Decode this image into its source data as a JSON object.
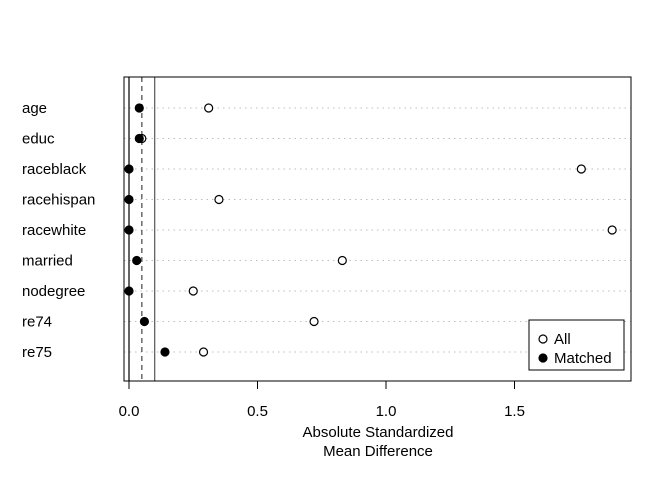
{
  "chart_data": {
    "type": "scatter",
    "subtype": "dotplot",
    "title": "",
    "xlabel": "Absolute Standardized\nMean Difference",
    "xlabel_lines": [
      "Absolute Standardized",
      "Mean Difference"
    ],
    "ylabel": "",
    "xlim": [
      -0.02,
      1.95
    ],
    "x_ticks": [
      0.0,
      0.5,
      1.0,
      1.5
    ],
    "x_tick_labels": [
      "0.0",
      "0.5",
      "1.0",
      "1.5"
    ],
    "categories": [
      "age",
      "educ",
      "raceblack",
      "racehispan",
      "racewhite",
      "married",
      "nodegree",
      "re74",
      "re75"
    ],
    "series": [
      {
        "name": "All",
        "marker": "open-circle",
        "values": [
          0.31,
          0.05,
          1.76,
          0.35,
          1.88,
          0.83,
          0.25,
          0.72,
          0.29
        ]
      },
      {
        "name": "Matched",
        "marker": "filled-circle",
        "values": [
          0.04,
          0.04,
          0.0,
          0.0,
          0.0,
          0.03,
          0.0,
          0.06,
          0.14
        ]
      }
    ],
    "reference_lines": [
      {
        "x": 0.0,
        "style": "solid"
      },
      {
        "x": 0.05,
        "style": "dashed"
      },
      {
        "x": 0.1,
        "style": "solid"
      }
    ],
    "grid": "dotted horizontal per category",
    "legend": {
      "position": "bottom-right",
      "entries": [
        "All",
        "Matched"
      ]
    }
  }
}
